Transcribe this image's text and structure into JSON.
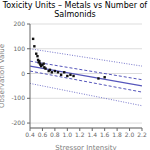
{
  "chart_data": {
    "type": "scatter",
    "title": "Toxicity Units – Metals vs Number of Salmonids",
    "xlabel": "Stressor Intensity",
    "ylabel": "Observation Value",
    "xlim": [
      0.4,
      2.2
    ],
    "ylim": [
      -220,
      200
    ],
    "xticks": [
      0.4,
      0.6,
      0.8,
      {
        "value": 1.0,
        "label": "1.0"
      },
      1.2,
      1.4,
      1.6,
      1.8,
      {
        "value": 2.0,
        "label": "2.0"
      },
      2.2
    ],
    "yticks": [
      -200,
      -100,
      0,
      100,
      200
    ],
    "grid": "y",
    "series": [
      {
        "type": "line",
        "line_style": "dotted",
        "color": "#7777cc",
        "x": [
          0.4,
          2.2
        ],
        "values": [
          100,
          30
        ]
      },
      {
        "type": "line",
        "line_style": "dotted",
        "color": "#7777cc",
        "x": [
          0.4,
          2.2
        ],
        "values": [
          -40,
          -130
        ]
      },
      {
        "type": "line",
        "line_style": "dashed",
        "color": "#5555bb",
        "x": [
          0.4,
          2.2
        ],
        "values": [
          50,
          -25
        ]
      },
      {
        "type": "line",
        "line_style": "dashed",
        "color": "#5555bb",
        "x": [
          0.4,
          2.2
        ],
        "values": [
          10,
          -75
        ]
      },
      {
        "type": "line",
        "line_style": "solid",
        "color": "#5555bb",
        "x": [
          0.4,
          2.2
        ],
        "values": [
          30,
          -50
        ]
      },
      {
        "type": "scatter",
        "marker": "square",
        "color": "#111111",
        "x": [
          0.45,
          0.47,
          0.5,
          0.52,
          0.53,
          0.54,
          0.55,
          0.56,
          0.57,
          0.58,
          0.6,
          0.62,
          0.63,
          0.65,
          0.7,
          0.72,
          0.75,
          0.8,
          0.85,
          0.9,
          0.95,
          1.0,
          1.05,
          1.1,
          1.5,
          1.6
        ],
        "values": [
          140,
          110,
          80,
          70,
          55,
          45,
          50,
          40,
          35,
          30,
          35,
          40,
          25,
          20,
          10,
          15,
          5,
          10,
          5,
          -5,
          5,
          -10,
          -5,
          -10,
          -20,
          -15
        ]
      }
    ]
  }
}
